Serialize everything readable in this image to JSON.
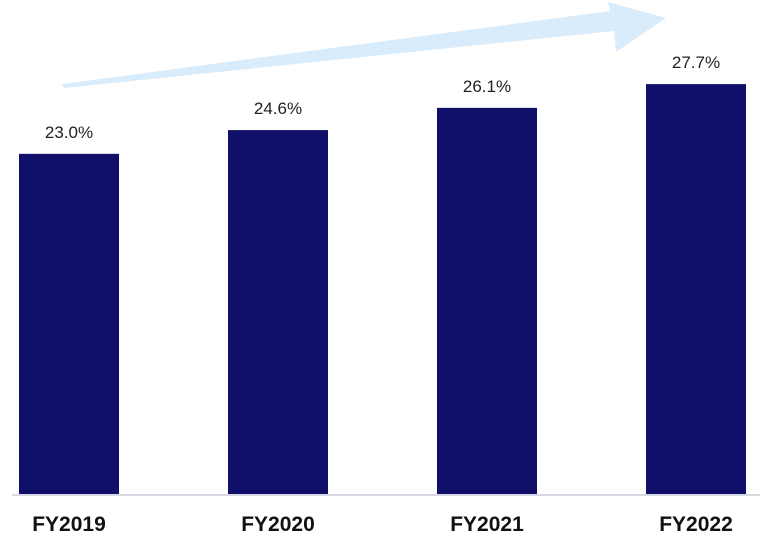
{
  "chart_data": {
    "type": "bar",
    "categories": [
      "FY2019",
      "FY2020",
      "FY2021",
      "FY2022"
    ],
    "values": [
      23.0,
      24.6,
      26.1,
      27.7
    ],
    "data_labels": [
      "23.0%",
      "24.6%",
      "26.1%",
      "27.7%"
    ],
    "title": "",
    "xlabel": "",
    "ylabel": "",
    "ylim": [
      0,
      30
    ],
    "grid": false,
    "legend": "none",
    "bar_color": "#10106a",
    "arrow_color": "#d9ecfb",
    "baseline_color": "#d7d7e6"
  }
}
